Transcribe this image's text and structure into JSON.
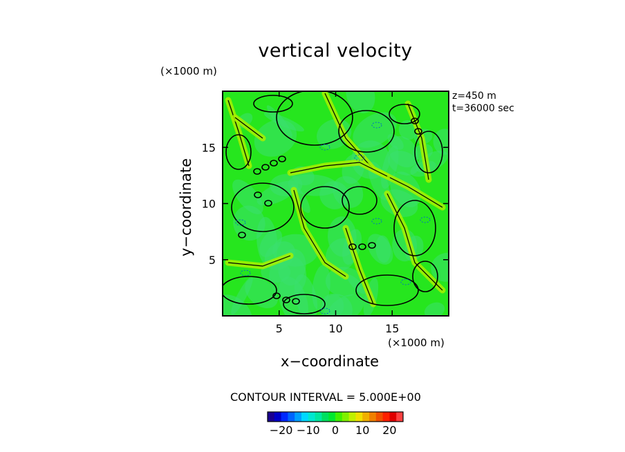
{
  "chart_data": {
    "type": "heatmap",
    "title": "vertical velocity",
    "xlabel": "x−coordinate",
    "ylabel": "y−coordinate",
    "x_unit_label": "(×1000 m)",
    "y_unit_label": "(×1000 m)",
    "xlim": [
      0,
      20
    ],
    "ylim": [
      0,
      20
    ],
    "x_ticks": [
      "5",
      "10",
      "15"
    ],
    "y_ticks": [
      "5",
      "10",
      "15"
    ],
    "annotations": [
      "z=450  m",
      "t=36000 sec"
    ],
    "contour_interval_label": "CONTOUR INTERVAL = 5.000E+00",
    "colorbar_ticks": [
      "−20",
      "−10",
      "0",
      "10",
      "20"
    ],
    "colorbar_range": [
      -25,
      25
    ],
    "colorbar_colors": [
      "#1a0090",
      "#0000c8",
      "#0028ff",
      "#0064ff",
      "#00a0ff",
      "#00d8ff",
      "#00e8d0",
      "#00e8a0",
      "#00e060",
      "#00e830",
      "#40f000",
      "#80f000",
      "#c0f000",
      "#f0e000",
      "#f0b000",
      "#f08000",
      "#f05000",
      "#ff2000",
      "#e00000",
      "#ff4040"
    ],
    "background_color": "#26e61e",
    "updraft_color": "#a8f000",
    "downdraft_color": "#3ae070"
  }
}
